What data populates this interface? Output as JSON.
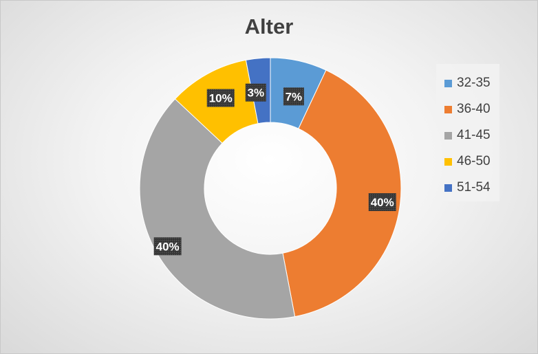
{
  "chart_data": {
    "type": "pie",
    "subtype": "donut",
    "title": "Alter",
    "categories": [
      "32-35",
      "36-40",
      "41-45",
      "46-50",
      "51-54"
    ],
    "values": [
      7,
      40,
      40,
      10,
      3
    ],
    "labels": [
      "7%",
      "40%",
      "40%",
      "10%",
      "3%"
    ],
    "colors": [
      "#5B9BD5",
      "#ED7D31",
      "#A5A5A5",
      "#FFC000",
      "#4472C4"
    ],
    "legend_position": "right",
    "data_label_style": "white bold text on dark patterned box"
  }
}
